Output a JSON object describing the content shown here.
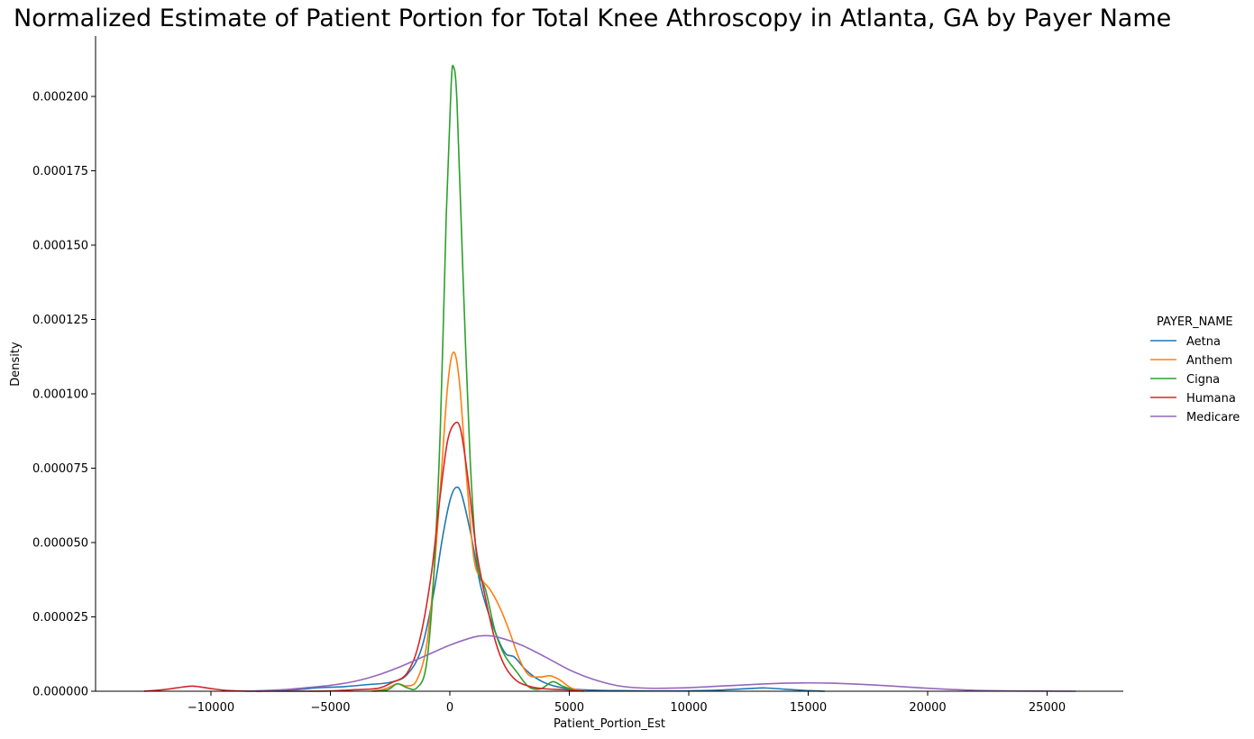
{
  "chart_data": {
    "type": "line",
    "title": "Normalized Estimate of Patient Portion for Total Knee Athroscopy in Atlanta, GA by Payer Name",
    "xlabel": "Patient_Portion_Est",
    "ylabel": "Density",
    "xlim": [
      -14000,
      28000
    ],
    "ylim": [
      0,
      0.00022
    ],
    "x_ticks": [
      -10000,
      -5000,
      0,
      5000,
      10000,
      15000,
      20000,
      25000
    ],
    "x_tick_labels": [
      "−10000",
      "−5000",
      "0",
      "5000",
      "10000",
      "15000",
      "20000",
      "25000"
    ],
    "y_ticks": [
      0,
      2.5e-05,
      5e-05,
      7.5e-05,
      0.0001,
      0.000125,
      0.00015,
      0.000175,
      0.0002
    ],
    "y_tick_labels": [
      "0.000000",
      "0.000025",
      "0.000050",
      "0.000075",
      "0.000100",
      "0.000125",
      "0.000150",
      "0.000175",
      "0.000200"
    ],
    "grid": false,
    "legend": {
      "title": "PAYER_NAME",
      "placement": "right"
    },
    "series": [
      {
        "name": "Aetna",
        "color": "#1f77b4",
        "points": [
          [
            -8100,
            0
          ],
          [
            -6500,
            5e-07
          ],
          [
            -5500,
            1.2e-06
          ],
          [
            -4500,
            1.5e-06
          ],
          [
            -3500,
            2.2e-06
          ],
          [
            -2500,
            3e-06
          ],
          [
            -1800,
            5.5e-06
          ],
          [
            -1200,
            1.4e-05
          ],
          [
            -700,
            3.2e-05
          ],
          [
            -300,
            5.2e-05
          ],
          [
            0,
            6.4e-05
          ],
          [
            250,
            6.85e-05
          ],
          [
            500,
            6.6e-05
          ],
          [
            900,
            5.2e-05
          ],
          [
            1300,
            3.5e-05
          ],
          [
            1800,
            2.2e-05
          ],
          [
            2300,
            1.3e-05
          ],
          [
            2700,
            1.15e-05
          ],
          [
            3200,
            7e-06
          ],
          [
            3800,
            3.5e-06
          ],
          [
            4500,
            1.5e-06
          ],
          [
            5500,
            5e-07
          ],
          [
            7000,
            2e-07
          ],
          [
            9000,
            1e-07
          ],
          [
            11000,
            3e-07
          ],
          [
            12500,
            9e-07
          ],
          [
            13200,
            1.1e-06
          ],
          [
            14000,
            7e-07
          ],
          [
            15000,
            2e-07
          ],
          [
            15700,
            0
          ]
        ]
      },
      {
        "name": "Anthem",
        "color": "#ff7f0e",
        "points": [
          [
            -3300,
            0
          ],
          [
            -2700,
            8e-07
          ],
          [
            -2200,
            2.5e-06
          ],
          [
            -1800,
            1.8e-06
          ],
          [
            -1400,
            3.5e-06
          ],
          [
            -1000,
            1.4e-05
          ],
          [
            -700,
            3.6e-05
          ],
          [
            -400,
            6.8e-05
          ],
          [
            -100,
            0.000102
          ],
          [
            150,
            0.000114
          ],
          [
            400,
            0.000104
          ],
          [
            700,
            7.2e-05
          ],
          [
            1000,
            4.5e-05
          ],
          [
            1300,
            3.8e-05
          ],
          [
            1700,
            3.4e-05
          ],
          [
            2100,
            2.8e-05
          ],
          [
            2500,
            2e-05
          ],
          [
            2900,
            1.1e-05
          ],
          [
            3300,
            5.5e-06
          ],
          [
            3800,
            4.8e-06
          ],
          [
            4200,
            5.2e-06
          ],
          [
            4600,
            3.8e-06
          ],
          [
            5100,
            1e-06
          ],
          [
            5700,
            0
          ]
        ]
      },
      {
        "name": "Cigna",
        "color": "#2ca02c",
        "points": [
          [
            -3200,
            0
          ],
          [
            -2600,
            5e-07
          ],
          [
            -2200,
            2.5e-06
          ],
          [
            -1800,
            1.2e-06
          ],
          [
            -1400,
            1e-06
          ],
          [
            -1000,
            8e-06
          ],
          [
            -700,
            3.5e-05
          ],
          [
            -400,
            8.8e-05
          ],
          [
            -150,
            0.00016
          ],
          [
            50,
            0.000203
          ],
          [
            150,
            0.00021
          ],
          [
            300,
            0.000198
          ],
          [
            550,
            0.00014
          ],
          [
            850,
            7.8e-05
          ],
          [
            1150,
            4.3e-05
          ],
          [
            1500,
            3.4e-05
          ],
          [
            1900,
            2e-05
          ],
          [
            2300,
            1.2e-05
          ],
          [
            2800,
            6.5e-06
          ],
          [
            3300,
            1.5e-06
          ],
          [
            3800,
            8e-07
          ],
          [
            4300,
            3.2e-06
          ],
          [
            4700,
            1.8e-06
          ],
          [
            5300,
            0
          ]
        ]
      },
      {
        "name": "Humana",
        "color": "#d62728",
        "points": [
          [
            -12800,
            0
          ],
          [
            -12000,
            5e-07
          ],
          [
            -11200,
            1.4e-06
          ],
          [
            -10700,
            1.7e-06
          ],
          [
            -10000,
            9e-07
          ],
          [
            -9200,
            2e-07
          ],
          [
            -8000,
            0
          ],
          [
            -6000,
            0
          ],
          [
            -5000,
            1e-07
          ],
          [
            -4000,
            5e-07
          ],
          [
            -3000,
            1e-06
          ],
          [
            -2400,
            3e-06
          ],
          [
            -1800,
            6e-06
          ],
          [
            -1300,
            1.6e-05
          ],
          [
            -800,
            3.8e-05
          ],
          [
            -400,
            6.6e-05
          ],
          [
            -100,
            8.4e-05
          ],
          [
            200,
            9e-05
          ],
          [
            450,
            8.8e-05
          ],
          [
            750,
            7.2e-05
          ],
          [
            1100,
            4.8e-05
          ],
          [
            1500,
            3.1e-05
          ],
          [
            1900,
            1.7e-05
          ],
          [
            2300,
            8.5e-06
          ],
          [
            2800,
            3.5e-06
          ],
          [
            3400,
            1.5e-06
          ],
          [
            4000,
            8e-07
          ],
          [
            4800,
            5e-07
          ],
          [
            5600,
            0
          ]
        ]
      },
      {
        "name": "Medicare",
        "color": "#9467bd",
        "points": [
          [
            -8500,
            0
          ],
          [
            -7000,
            5e-07
          ],
          [
            -6000,
            1.2e-06
          ],
          [
            -5000,
            2e-06
          ],
          [
            -4000,
            3.3e-06
          ],
          [
            -3000,
            5.5e-06
          ],
          [
            -2000,
            8.5e-06
          ],
          [
            -1000,
            1.2e-05
          ],
          [
            0,
            1.55e-05
          ],
          [
            1000,
            1.82e-05
          ],
          [
            1500,
            1.87e-05
          ],
          [
            2000,
            1.82e-05
          ],
          [
            3000,
            1.55e-05
          ],
          [
            4000,
            1.15e-05
          ],
          [
            5000,
            7.2e-06
          ],
          [
            6000,
            4e-06
          ],
          [
            7000,
            1.9e-06
          ],
          [
            8000,
            1.1e-06
          ],
          [
            9000,
            1e-06
          ],
          [
            10000,
            1.2e-06
          ],
          [
            11000,
            1.6e-06
          ],
          [
            12000,
            2e-06
          ],
          [
            13000,
            2.4e-06
          ],
          [
            14000,
            2.7e-06
          ],
          [
            15000,
            2.8e-06
          ],
          [
            16000,
            2.7e-06
          ],
          [
            17000,
            2.4e-06
          ],
          [
            18000,
            2e-06
          ],
          [
            19000,
            1.5e-06
          ],
          [
            20000,
            1e-06
          ],
          [
            21000,
            6e-07
          ],
          [
            22000,
            3e-07
          ],
          [
            23500,
            1e-07
          ],
          [
            26200,
            0
          ]
        ]
      }
    ]
  }
}
